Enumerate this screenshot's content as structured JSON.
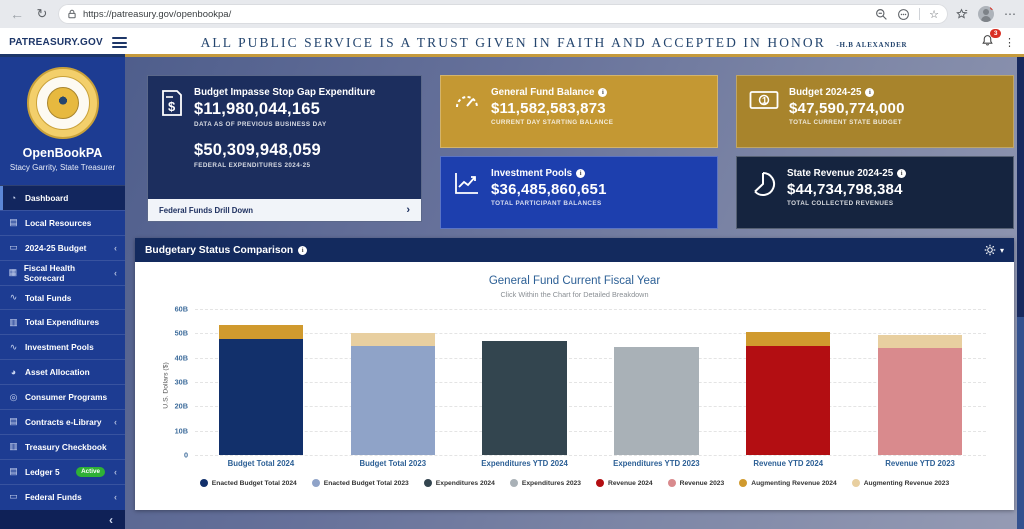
{
  "browser": {
    "url": "https://patreasury.gov/openbookpa/"
  },
  "header": {
    "brand": "PATREASURY.GOV",
    "quote": "ALL PUBLIC SERVICE IS A TRUST GIVEN IN FAITH AND ACCEPTED IN HONOR",
    "quote_attribution": "-H.B ALEXANDER",
    "notification_count": "3"
  },
  "sidebar": {
    "app_name": "OpenBookPA",
    "subtitle": "Stacy Garrity, State Treasurer",
    "items": [
      {
        "label": "Dashboard",
        "glyph": "◔",
        "active": true
      },
      {
        "label": "Local Resources",
        "glyph": "▤"
      },
      {
        "label": "2024-25 Budget",
        "glyph": "▭",
        "chevron": "‹"
      },
      {
        "label": "Fiscal Health Scorecard",
        "glyph": "▦",
        "chevron": "‹"
      },
      {
        "label": "Total Funds",
        "glyph": "∿"
      },
      {
        "label": "Total Expenditures",
        "glyph": "▥"
      },
      {
        "label": "Investment Pools",
        "glyph": "∿"
      },
      {
        "label": "Asset Allocation",
        "glyph": "◕"
      },
      {
        "label": "Consumer Programs",
        "glyph": "◎"
      },
      {
        "label": "Contracts e-Library",
        "glyph": "▤",
        "chevron": "‹"
      },
      {
        "label": "Treasury Checkbook",
        "glyph": "▥"
      },
      {
        "label": "Ledger 5",
        "glyph": "▤",
        "badge": "Active",
        "chevron": "‹"
      },
      {
        "label": "Federal Funds",
        "glyph": "▭",
        "chevron": "‹"
      }
    ],
    "collapse_glyph": "‹"
  },
  "cards": {
    "impasse": {
      "title": "Budget Impasse Stop Gap Expenditure",
      "value": "$11,980,044,165",
      "caption": "DATA AS OF PREVIOUS BUSINESS DAY",
      "value2": "$50,309,948,059",
      "caption2": "FEDERAL EXPENDITURES 2024-25",
      "footer": "Federal Funds Drill Down",
      "footer_chevron": "›"
    },
    "general_fund": {
      "title": "General Fund Balance",
      "value": "$11,582,583,873",
      "caption": "CURRENT DAY STARTING BALANCE"
    },
    "budget": {
      "title": "Budget 2024-25",
      "value": "$47,590,774,000",
      "caption": "TOTAL CURRENT STATE BUDGET"
    },
    "investment": {
      "title": "Investment Pools",
      "value": "$36,485,860,651",
      "caption": "TOTAL PARTICIPANT BALANCES"
    },
    "revenue": {
      "title": "State Revenue 2024-25",
      "value": "$44,734,798,384",
      "caption": "TOTAL COLLECTED REVENUES"
    }
  },
  "panel": {
    "title": "Budgetary Status Comparison"
  },
  "colors": {
    "sidebar_blue": "#1d3c92",
    "header_navy": "#1d3668",
    "gold_accent": "#c59a3c",
    "card_navy": "#1c2e5e",
    "card_gold": "#c49833",
    "card_dark_gold": "#a8842c",
    "card_blue": "#1d3fae",
    "card_dark_navy": "#15243f",
    "badge_green": "#2eb135",
    "notification_red": "#d93025"
  },
  "chart_data": {
    "type": "bar",
    "stacked": true,
    "title": "General Fund Current Fiscal Year",
    "subtitle": "Click Within the Chart for Detailed Breakdown",
    "ylabel": "U.S. Dollars ($)",
    "unit": "billions of USD",
    "ylim": [
      0,
      60
    ],
    "yticks": [
      "60B",
      "50B",
      "40B",
      "30B",
      "20B",
      "10B",
      "0"
    ],
    "grid": true,
    "legend_position": "bottom",
    "categories": [
      "Budget Total 2024",
      "Budget Total 2023",
      "Expenditures YTD 2024",
      "Expenditures YTD 2023",
      "Revenue YTD 2024",
      "Revenue YTD 2023"
    ],
    "bars": [
      {
        "category": "Budget Total 2024",
        "segments": [
          {
            "name": "Enacted Budget Total 2024",
            "value": 47.6,
            "color": "#12306b"
          },
          {
            "name": "Augmenting Revenue 2024",
            "value": 6.0,
            "color": "#d09a2e"
          }
        ]
      },
      {
        "category": "Budget Total 2023",
        "segments": [
          {
            "name": "Enacted Budget Total 2023",
            "value": 44.6,
            "color": "#8fa3c8"
          },
          {
            "name": "Augmenting Revenue 2023",
            "value": 5.7,
            "color": "#e8cfa0"
          }
        ]
      },
      {
        "category": "Expenditures YTD 2024",
        "segments": [
          {
            "name": "Expenditures 2024",
            "value": 47.0,
            "color": "#33454f"
          }
        ]
      },
      {
        "category": "Expenditures YTD 2023",
        "segments": [
          {
            "name": "Expenditures 2023",
            "value": 44.5,
            "color": "#a9b1b7"
          }
        ]
      },
      {
        "category": "Revenue YTD 2024",
        "segments": [
          {
            "name": "Revenue 2024",
            "value": 44.7,
            "color": "#b30e12"
          },
          {
            "name": "Augmenting Revenue 2024",
            "value": 5.8,
            "color": "#d09a2e"
          }
        ]
      },
      {
        "category": "Revenue YTD 2023",
        "segments": [
          {
            "name": "Revenue 2023",
            "value": 43.9,
            "color": "#d98a8d"
          },
          {
            "name": "Augmenting Revenue 2023",
            "value": 5.6,
            "color": "#e8cfa0"
          }
        ]
      }
    ],
    "legend": [
      {
        "name": "Enacted Budget Total 2024",
        "color": "#12306b"
      },
      {
        "name": "Enacted Budget Total 2023",
        "color": "#8fa3c8"
      },
      {
        "name": "Expenditures 2024",
        "color": "#33454f"
      },
      {
        "name": "Expenditures 2023",
        "color": "#a9b1b7"
      },
      {
        "name": "Revenue 2024",
        "color": "#b30e12"
      },
      {
        "name": "Revenue 2023",
        "color": "#d98a8d"
      },
      {
        "name": "Augmenting Revenue 2024",
        "color": "#d09a2e"
      },
      {
        "name": "Augmenting Revenue 2023",
        "color": "#e8cfa0"
      }
    ]
  }
}
